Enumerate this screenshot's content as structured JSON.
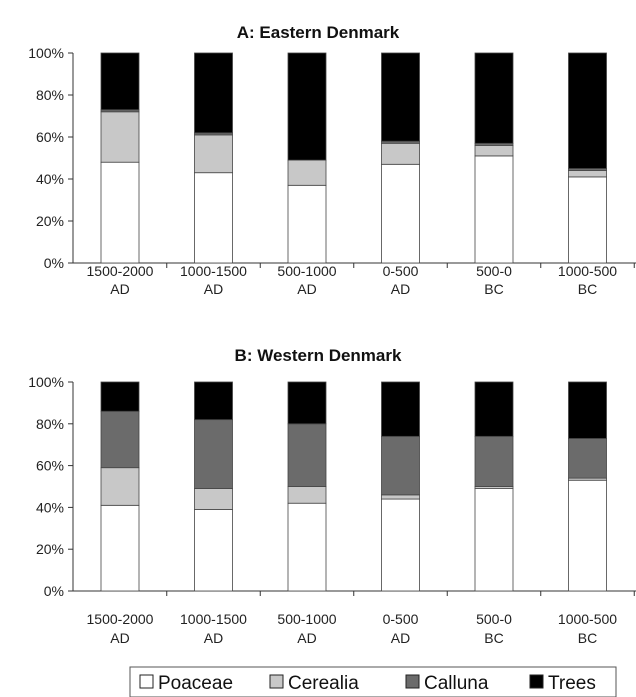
{
  "legend": [
    {
      "name": "Poaceae",
      "color": "#ffffff"
    },
    {
      "name": "Cerealia",
      "color": "#c8c8c8"
    },
    {
      "name": "Calluna",
      "color": "#6b6b6b"
    },
    {
      "name": "Trees",
      "color": "#000000"
    }
  ],
  "chart_data": [
    {
      "type": "bar",
      "stacked": true,
      "title": "A: Eastern Denmark",
      "categories": [
        [
          "1500-2000",
          "AD"
        ],
        [
          "1000-1500",
          "AD"
        ],
        [
          "500-1000",
          "AD"
        ],
        [
          "0-500",
          "AD"
        ],
        [
          "500-0",
          "BC"
        ],
        [
          "1000-500",
          "BC"
        ]
      ],
      "ylim": [
        0,
        100
      ],
      "yticks": [
        "0%",
        "20%",
        "40%",
        "60%",
        "80%",
        "100%"
      ],
      "series": [
        {
          "name": "Poaceae",
          "values": [
            48,
            43,
            37,
            47,
            51,
            41
          ]
        },
        {
          "name": "Cerealia",
          "values": [
            24,
            18,
            12,
            10,
            5,
            3
          ]
        },
        {
          "name": "Calluna",
          "values": [
            1,
            1,
            0,
            1,
            1,
            1
          ]
        },
        {
          "name": "Trees",
          "values": [
            27,
            38,
            51,
            42,
            43,
            55
          ]
        }
      ]
    },
    {
      "type": "bar",
      "stacked": true,
      "title": "B: Western Denmark",
      "categories": [
        [
          "1500-2000",
          "AD"
        ],
        [
          "1000-1500",
          "AD"
        ],
        [
          "500-1000",
          "AD"
        ],
        [
          "0-500",
          "AD"
        ],
        [
          "500-0",
          "BC"
        ],
        [
          "1000-500",
          "BC"
        ]
      ],
      "ylim": [
        0,
        100
      ],
      "yticks": [
        "0%",
        "20%",
        "40%",
        "60%",
        "80%",
        "100%"
      ],
      "series": [
        {
          "name": "Poaceae",
          "values": [
            41,
            39,
            42,
            44,
            49,
            53
          ]
        },
        {
          "name": "Cerealia",
          "values": [
            18,
            10,
            8,
            2,
            1,
            1
          ]
        },
        {
          "name": "Calluna",
          "values": [
            27,
            33,
            30,
            28,
            24,
            19
          ]
        },
        {
          "name": "Trees",
          "values": [
            14,
            18,
            20,
            26,
            26,
            27
          ]
        }
      ]
    }
  ]
}
